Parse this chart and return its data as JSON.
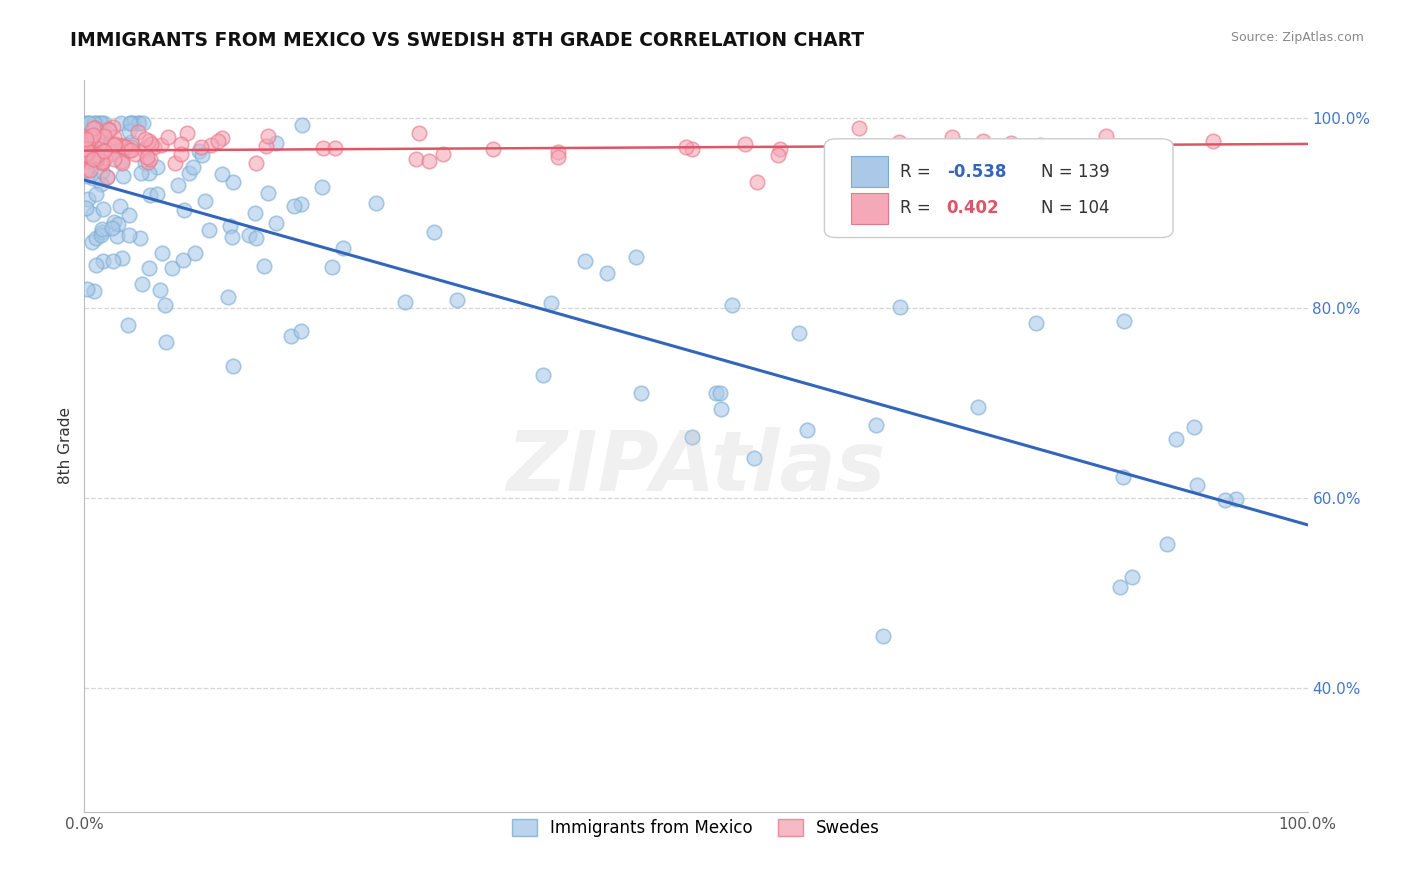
{
  "title": "IMMIGRANTS FROM MEXICO VS SWEDISH 8TH GRADE CORRELATION CHART",
  "source": "Source: ZipAtlas.com",
  "ylabel": "8th Grade",
  "blue_label": "Immigrants from Mexico",
  "pink_label": "Swedes",
  "blue_R": "-0.538",
  "blue_N": 139,
  "pink_R": "0.402",
  "pink_N": 104,
  "blue_color": "#aac8e8",
  "pink_color": "#f4a8b8",
  "blue_edge_color": "#7aadd4",
  "pink_edge_color": "#e8788a",
  "blue_line_color": "#3366bb",
  "pink_line_color": "#dd5566",
  "blue_line_x": [
    0.0,
    1.0
  ],
  "blue_line_y": [
    0.935,
    0.572
  ],
  "pink_line_x": [
    0.0,
    1.0
  ],
  "pink_line_y": [
    0.966,
    0.973
  ],
  "grid_color": "#cccccc",
  "background_color": "#ffffff",
  "ytick_positions": [
    0.4,
    0.6,
    0.8,
    1.0
  ],
  "ytick_labels": [
    "40.0%",
    "60.0%",
    "80.0%",
    "100.0%"
  ],
  "ylim": [
    0.27,
    1.04
  ],
  "xlim": [
    0.0,
    1.0
  ],
  "blue_seed": 42,
  "pink_seed": 99
}
